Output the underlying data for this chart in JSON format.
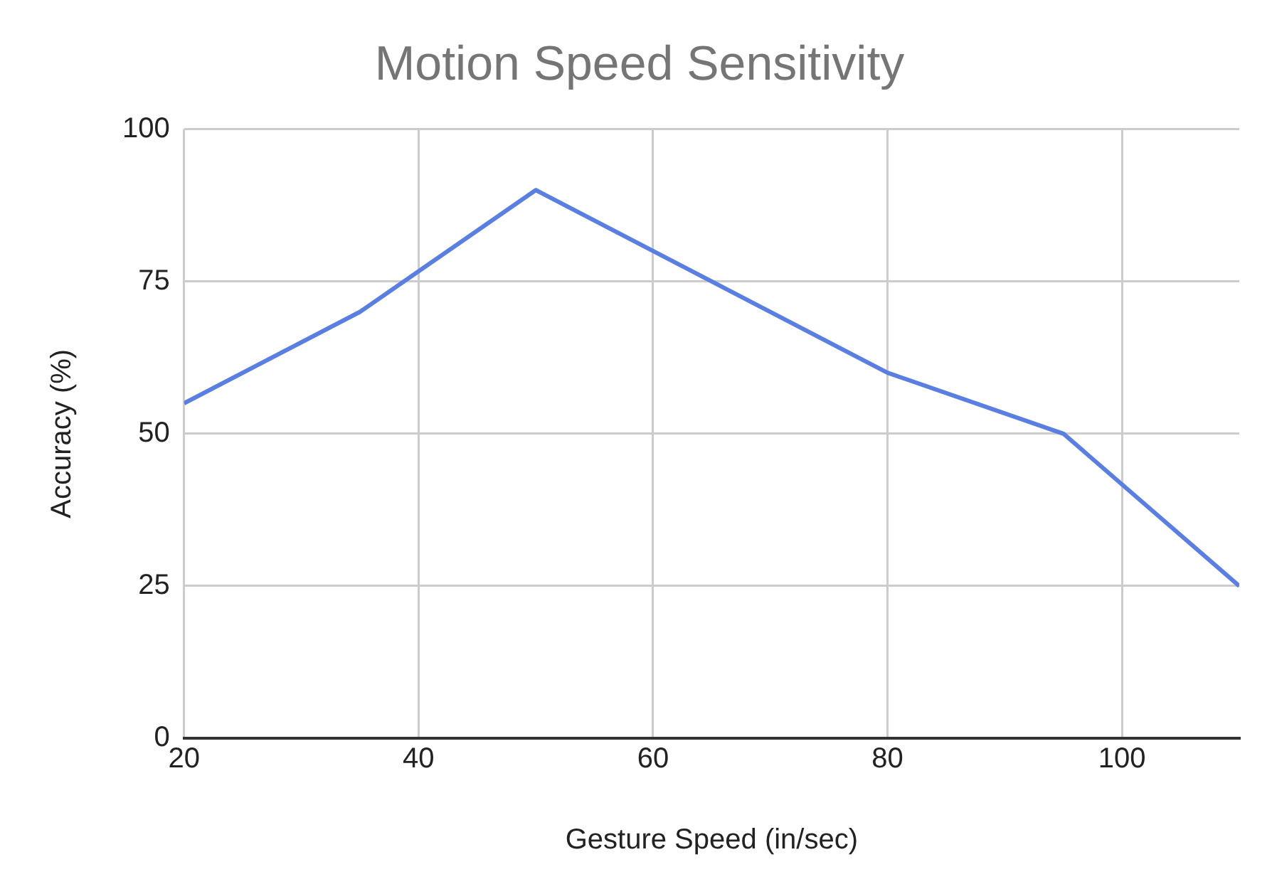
{
  "chart_data": {
    "type": "line",
    "title": "Motion Speed Sensitivity",
    "xlabel": "Gesture Speed (in/sec)",
    "ylabel": "Accuracy (%)",
    "x": [
      20,
      35,
      50,
      80,
      95,
      110
    ],
    "series": [
      {
        "color": "#5b7fe0",
        "values": [
          55,
          70,
          90,
          60,
          50,
          25
        ]
      }
    ],
    "xlim": [
      20,
      110
    ],
    "xticks": [
      20,
      40,
      60,
      80,
      100
    ],
    "ylim": [
      0,
      100
    ],
    "yticks": [
      0,
      25,
      50,
      75,
      100
    ],
    "grid": true,
    "legend": false,
    "marker": "none",
    "line_style": "solid"
  }
}
